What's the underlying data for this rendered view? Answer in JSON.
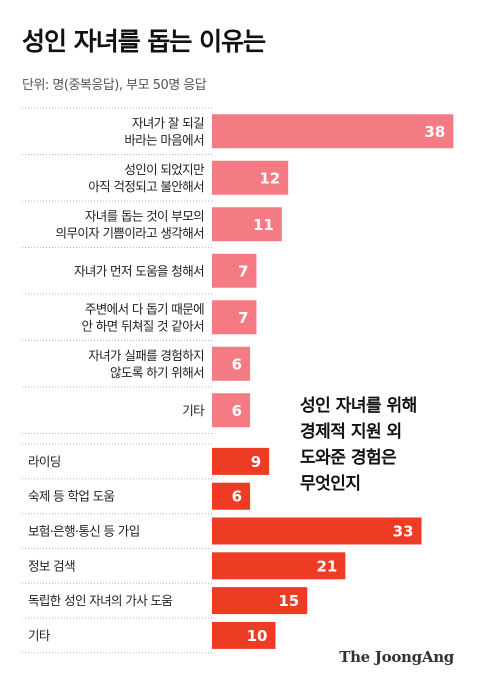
{
  "title": "성인 자녀를 돕는 이유는",
  "subtitle": "단위: 명(중복응답), 부모 50명 응답",
  "callout": "성인 자녀를 위해\n경제적 지원 외\n도와준 경험은\n무엇인지",
  "source": "The JoongAng",
  "colors": {
    "reasons": "#f47a83",
    "help": "#ee3b24"
  },
  "chart_data": [
    {
      "type": "bar",
      "orientation": "horizontal",
      "title": "성인 자녀를 돕는 이유는",
      "unit": "명",
      "categories": [
        [
          "자녀가 잘 되길",
          "바라는 마음에서"
        ],
        [
          "성인이 되었지만",
          "아직 걱정되고 불안해서"
        ],
        [
          "자녀를 돕는 것이 부모의",
          "의무이자 기쁨이라고 생각해서"
        ],
        [
          "자녀가 먼저 도움을 청해서"
        ],
        [
          "주변에서 다 돕기 때문에",
          "안 하면 뒤쳐질 것 같아서"
        ],
        [
          "자녀가 실패를 경험하지",
          "않도록 하기 위해서"
        ],
        [
          "기타"
        ]
      ],
      "values": [
        38,
        12,
        11,
        7,
        7,
        6,
        6
      ]
    },
    {
      "type": "bar",
      "orientation": "horizontal",
      "title": "성인 자녀를 위해 경제적 지원 외 도와준 경험은 무엇인지",
      "unit": "명",
      "categories": [
        [
          "라이딩"
        ],
        [
          "숙제 등 학업 도움"
        ],
        [
          "보험·은행·통신 등 가입"
        ],
        [
          "정보 검색"
        ],
        [
          "독립한 성인 자녀의 가사 도움"
        ],
        [
          "기타"
        ]
      ],
      "values": [
        9,
        6,
        33,
        21,
        15,
        10
      ]
    }
  ]
}
